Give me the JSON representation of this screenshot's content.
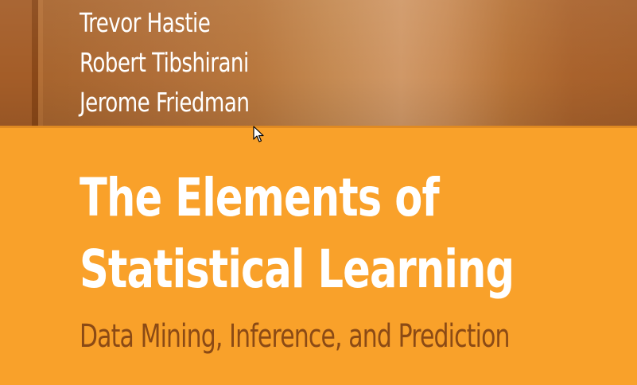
{
  "authors": [
    "Trevor Hastie",
    "Robert Tibshirani",
    "Jerome Friedman"
  ],
  "title": {
    "line1": "The Elements of",
    "line2": "Statistical Learning"
  },
  "subtitle": "Data Mining, Inference, and Prediction",
  "colors": {
    "cover_background": "#f9a12a",
    "author_band": "#b8773d",
    "title_text": "#ffffff",
    "subtitle_text": "#8b4a15"
  },
  "icons": {
    "cursor": "mouse-pointer-icon"
  }
}
